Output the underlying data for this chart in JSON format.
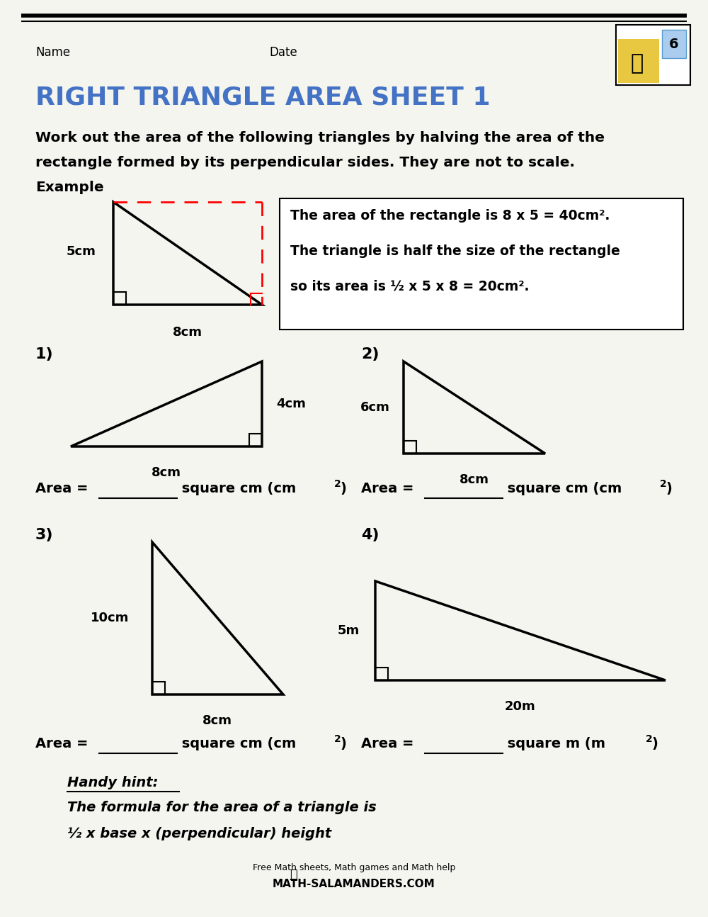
{
  "title": "RIGHT TRIANGLE AREA SHEET 1",
  "title_color": "#4472C4",
  "bg_color": "#F5F5F0",
  "name_label": "Name",
  "date_label": "Date",
  "intro_line1": "Work out the area of the following triangles by halving the area of the",
  "intro_line2": "rectangle formed by its perpendicular sides. They are not to scale.",
  "intro_line3": "Example",
  "ex_box_line1": "The area of the rectangle is 8 x 5 = 40cm².",
  "ex_box_line2": "The triangle is half the size of the rectangle",
  "ex_box_line3": "so its area is ½ x 5 x 8 = 20cm².",
  "area_label1": "Area = _______ square cm (cm",
  "area_label2": "Area = _______ square cm (cm",
  "area_label3": "Area = _______ square cm (cm",
  "area_label4": "Area = _______ square m (m",
  "hint_title": "Handy hint:",
  "hint_line1": "The formula for the area of a triangle is",
  "hint_line2": "½ x base x (perpendicular) height",
  "footer1": "Free Math sheets, Math games and Math help",
  "footer2": "MATH-SALAMANDERS.COM"
}
